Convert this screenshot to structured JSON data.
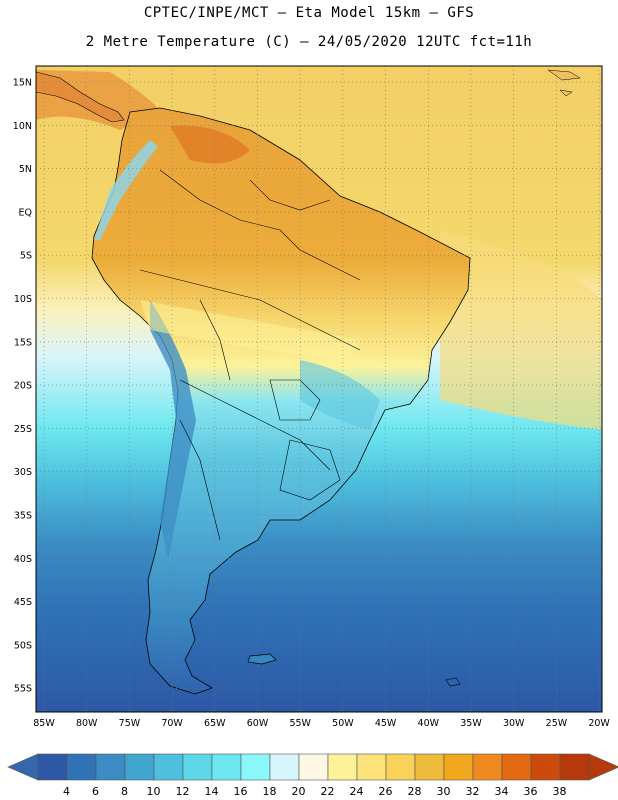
{
  "header": {
    "line1": "CPTEC/INPE/MCT –  Eta Model 15km – GFS",
    "line2": "2 Metre Temperature (C) – 24/05/2020 12UTC fct=11h"
  },
  "map": {
    "lat_labels": [
      "15N",
      "10N",
      "5N",
      "EQ",
      "5S",
      "10S",
      "15S",
      "20S",
      "25S",
      "30S",
      "35S",
      "40S",
      "45S",
      "50S",
      "55S"
    ],
    "lon_labels": [
      "85W",
      "80W",
      "75W",
      "70W",
      "65W",
      "60W",
      "55W",
      "50W",
      "45W",
      "40W",
      "35W",
      "30W",
      "25W",
      "20W"
    ]
  },
  "legend": {
    "values": [
      "4",
      "6",
      "8",
      "10",
      "12",
      "14",
      "16",
      "18",
      "20",
      "22",
      "24",
      "26",
      "28",
      "30",
      "32",
      "34",
      "36",
      "38"
    ],
    "colors": [
      "#2d58a6",
      "#2f73b6",
      "#3b8cc4",
      "#41a6cf",
      "#4ec0dd",
      "#5dd6e8",
      "#6ee8f0",
      "#8af7fa",
      "#d6f6fb",
      "#fdf7e3",
      "#fdf29a",
      "#fde27a",
      "#f9d25a",
      "#efbb3a",
      "#f2a81e",
      "#ee8a20",
      "#e36a12",
      "#cc4a0a",
      "#b5390a"
    ],
    "low_arrow_color": "#3567ad",
    "high_arrow_color": "#b5390a"
  }
}
